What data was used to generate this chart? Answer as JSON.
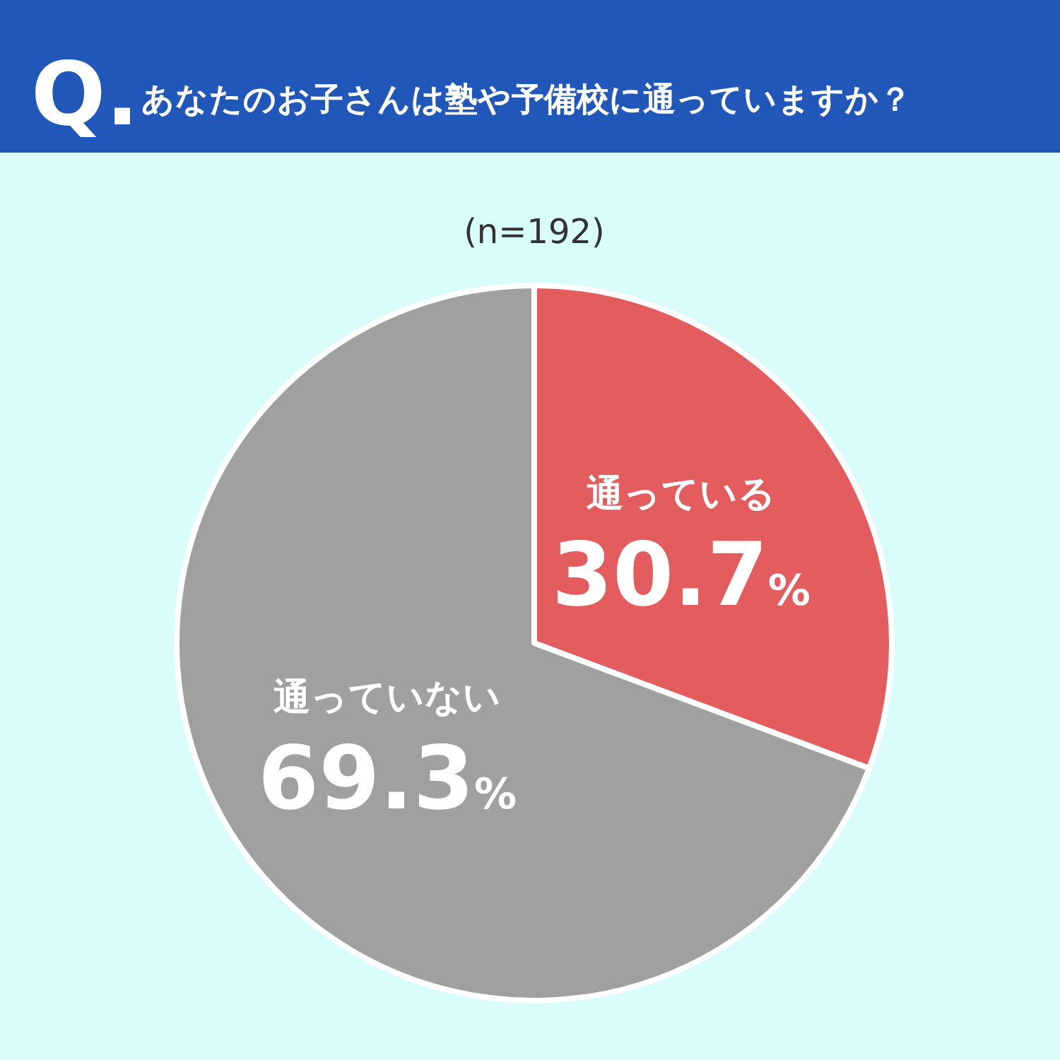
{
  "chart_data": {
    "type": "pie",
    "title": "Q.",
    "subtitle": "あなたのお子さんは塾や予備校に通っていますか？",
    "annotations": [
      "(n=192)"
    ],
    "categories": [
      "通っている",
      "通っていない"
    ],
    "values": [
      30.7,
      69.3
    ],
    "colors": [
      "#e35d5e",
      "#a0a0a0"
    ],
    "value_labels": [
      "30.7%",
      "69.3%"
    ]
  }
}
